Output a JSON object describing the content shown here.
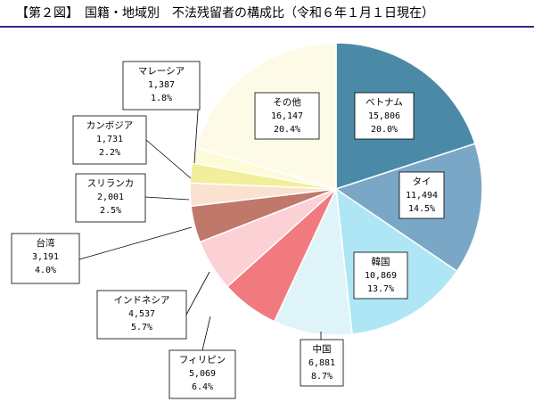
{
  "chart_data": {
    "type": "pie",
    "title": "【第２図】　国籍・地域別　不法残留者の構成比（令和６年１月１日現在）",
    "slices": [
      {
        "name": "ベトナム",
        "value": 15806,
        "value_label": "15,806",
        "percent": 20.0,
        "percent_label": "20.0%",
        "color": "#4a8aa6"
      },
      {
        "name": "タイ",
        "value": 11494,
        "value_label": "11,494",
        "percent": 14.5,
        "percent_label": "14.5%",
        "color": "#7ba7c6"
      },
      {
        "name": "韓国",
        "value": 10869,
        "value_label": "10,869",
        "percent": 13.7,
        "percent_label": "13.7%",
        "color": "#aee6f5"
      },
      {
        "name": "中国",
        "value": 6881,
        "value_label": "6,881",
        "percent": 8.7,
        "percent_label": "8.7%",
        "color": "#dff4f9"
      },
      {
        "name": "フィリピン",
        "value": 5069,
        "value_label": "5,069",
        "percent": 6.4,
        "percent_label": "6.4%",
        "color": "#f07a7e"
      },
      {
        "name": "インドネシア",
        "value": 4537,
        "value_label": "4,537",
        "percent": 5.7,
        "percent_label": "5.7%",
        "color": "#fcd1d6"
      },
      {
        "name": "台湾",
        "value": 3191,
        "value_label": "3,191",
        "percent": 4.0,
        "percent_label": "4.0%",
        "color": "#c0786a"
      },
      {
        "name": "スリランカ",
        "value": 2001,
        "value_label": "2,001",
        "percent": 2.5,
        "percent_label": "2.5%",
        "color": "#fbe1cf"
      },
      {
        "name": "カンボジア",
        "value": 1731,
        "value_label": "1,731",
        "percent": 2.2,
        "percent_label": "2.2%",
        "color": "#f2ef9a"
      },
      {
        "name": "マレーシア",
        "value": 1387,
        "value_label": "1,387",
        "percent": 1.8,
        "percent_label": "1.8%",
        "color": "#fdfbd8"
      },
      {
        "name": "その他",
        "value": 16147,
        "value_label": "16,147",
        "percent": 20.4,
        "percent_label": "20.4%",
        "color": "#fdfbe8"
      }
    ],
    "legend": "none"
  }
}
